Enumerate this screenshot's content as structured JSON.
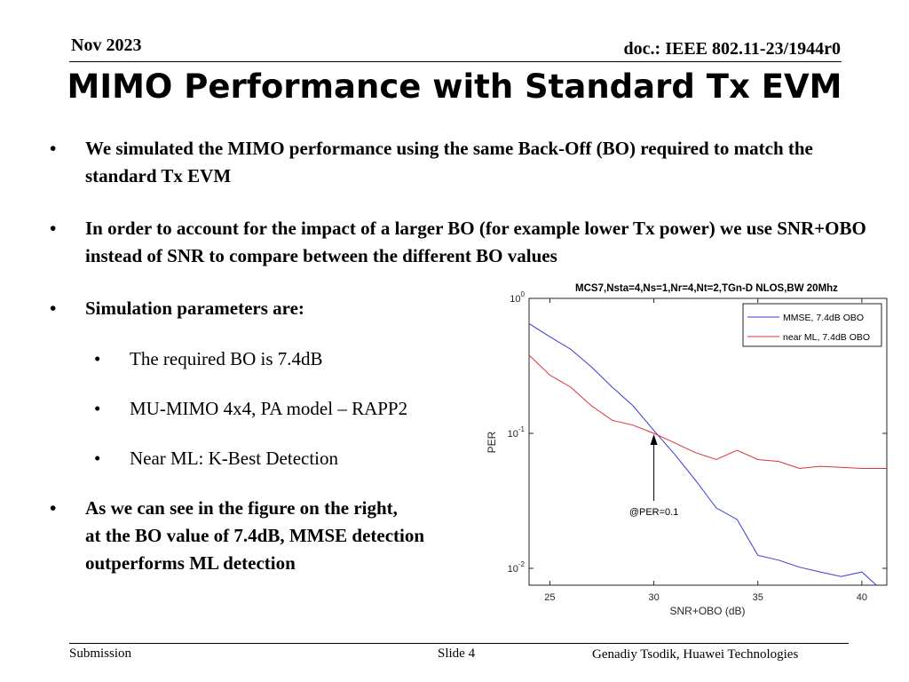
{
  "header": {
    "date": "Nov 2023",
    "doc": "doc.: IEEE 802.11-23/1944r0"
  },
  "title": "MIMO Performance with Standard Tx EVM",
  "bullets": {
    "b1": "We simulated the MIMO performance using the same Back-Off (BO) required to match the standard Tx EVM",
    "b2": "In order to account for the impact of a larger BO (for example lower Tx power) we use SNR+OBO instead of SNR to compare between the different BO values",
    "b3": "Simulation parameters are:",
    "sub1": "The required BO is 7.4dB",
    "sub2": "MU-MIMO 4x4, PA model – RAPP2",
    "sub3": "Near ML: K-Best Detection",
    "b4_line1": "As we can see in the figure on the right,",
    "b4_line2": "at the BO value of 7.4dB, MMSE detection",
    "b4_line3": "outperforms ML detection"
  },
  "chart_data": {
    "type": "line",
    "title": "MCS7,Nsta=4,Ns=1,Nr=4,Nt=2,TGn-D NLOS,BW 20Mhz",
    "xlabel": "SNR+OBO (dB)",
    "ylabel": "PER",
    "yscale": "log",
    "xlim": [
      24,
      41.2
    ],
    "ylim": [
      0.0075,
      1
    ],
    "xticks": [
      25,
      30,
      35,
      40
    ],
    "yticks": [
      {
        "value": 1,
        "base": "10",
        "exp": "0"
      },
      {
        "value": 0.1,
        "base": "10",
        "exp": "-1"
      },
      {
        "value": 0.01,
        "base": "10",
        "exp": "-2"
      }
    ],
    "series": [
      {
        "name": "MMSE, 7.4dB OBO",
        "color": "#3a3ad8",
        "x": [
          24,
          25,
          26,
          27,
          28,
          29,
          30,
          31,
          32,
          33,
          34,
          35,
          36,
          37,
          38,
          39,
          40,
          40.7
        ],
        "y": [
          0.65,
          0.52,
          0.42,
          0.31,
          0.22,
          0.16,
          0.105,
          0.07,
          0.045,
          0.028,
          0.023,
          0.0125,
          0.0115,
          0.0102,
          0.0094,
          0.0087,
          0.0094,
          0.0075
        ]
      },
      {
        "name": "near ML, 7.4dB OBO",
        "color": "#dd3333",
        "x": [
          24,
          25,
          26,
          27,
          28,
          29,
          30,
          31,
          32,
          33,
          34,
          35,
          36,
          37,
          38,
          39,
          40,
          41.2
        ],
        "y": [
          0.38,
          0.27,
          0.22,
          0.16,
          0.125,
          0.115,
          0.1,
          0.085,
          0.072,
          0.064,
          0.075,
          0.064,
          0.062,
          0.055,
          0.057,
          0.056,
          0.055,
          0.055
        ]
      }
    ],
    "legend": "top-right",
    "annotation": {
      "text": "@PER=0.1",
      "x": 30,
      "y": 0.1
    }
  },
  "footer": {
    "left": "Submission",
    "center": "Slide 4",
    "right": "Genadiy Tsodik, Huawei Technologies"
  }
}
